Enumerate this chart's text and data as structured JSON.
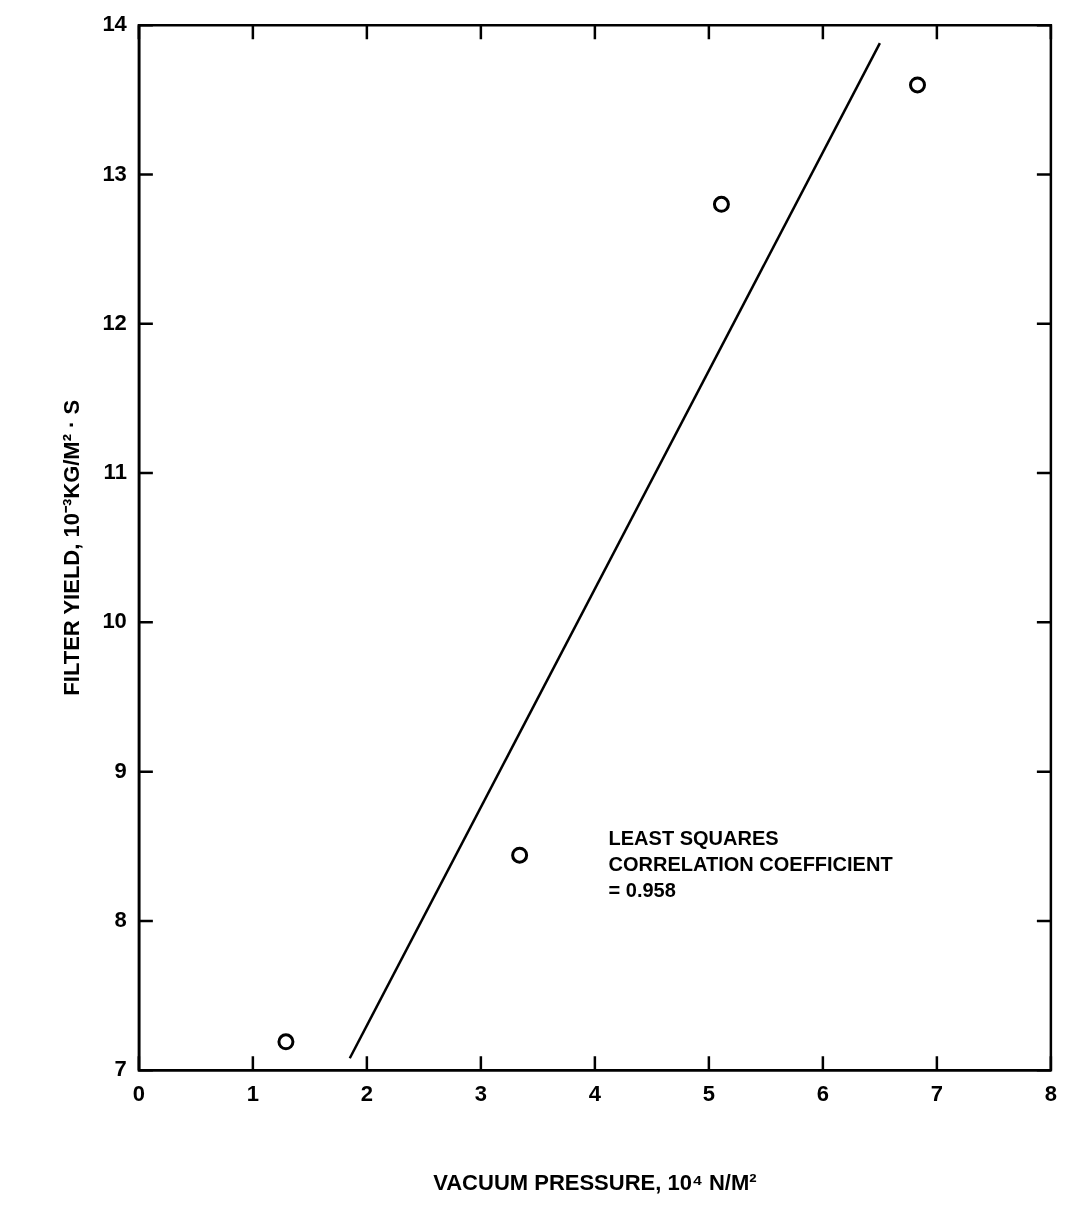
{
  "chart_data": {
    "type": "scatter",
    "xlabel": "VACUUM PRESSURE, 10⁴ N/M²",
    "ylabel": "FILTER YIELD, 10⁻³KG/M² · S",
    "xlim": [
      0,
      8
    ],
    "xticks": [
      0,
      1,
      2,
      3,
      4,
      5,
      6,
      7,
      8
    ],
    "ylim": [
      7,
      14
    ],
    "yticks": [
      7,
      8,
      9,
      10,
      11,
      12,
      13,
      14
    ],
    "grid": false,
    "legend": false,
    "annotations": [
      "LEAST SQUARES\nCORRELATION COEFFICIENT\n= 0.958"
    ],
    "series": [
      {
        "type": "scatter",
        "marker": "circle",
        "color": "#000000",
        "x": [
          1.29,
          3.34,
          5.11,
          6.83
        ],
        "values": [
          7.19,
          8.44,
          12.8,
          13.6
        ]
      },
      {
        "type": "line",
        "marker": "none",
        "line_style": "solid",
        "color": "#000000",
        "x": [
          1.85,
          6.5
        ],
        "values": [
          7.08,
          13.88
        ]
      }
    ]
  }
}
